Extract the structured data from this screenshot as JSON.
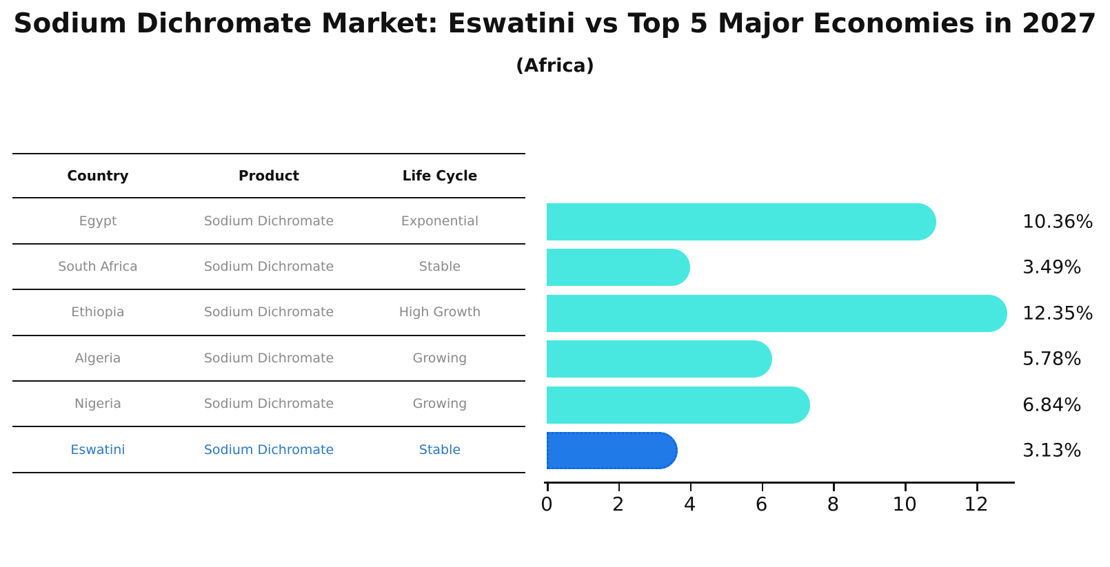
{
  "title": "Sodium Dichromate Market: Eswatini vs Top 5 Major Economies in 2027",
  "subtitle": "(Africa)",
  "colors": {
    "bar": "#48E8E0",
    "highlight_bar": "#207AE8",
    "highlight_bar_border": "#1165DD",
    "highlight_text": "#2878C2",
    "row_text": "#8A8A8A",
    "header_text": "#111111",
    "axis": "#111111"
  },
  "table": {
    "headers": [
      "Country",
      "Product",
      "Life Cycle"
    ],
    "rows": [
      [
        "Egypt",
        "Sodium Dichromate",
        "Exponential"
      ],
      [
        "South Africa",
        "Sodium Dichromate",
        "Stable"
      ],
      [
        "Ethiopia",
        "Sodium Dichromate",
        "High Growth"
      ],
      [
        "Algeria",
        "Sodium Dichromate",
        "Growing"
      ],
      [
        "Nigeria",
        "Sodium Dichromate",
        "Growing"
      ],
      [
        "Eswatini",
        "Sodium Dichromate",
        "Stable"
      ]
    ],
    "highlight_row_index": 5
  },
  "chart_data": {
    "type": "bar",
    "orientation": "horizontal",
    "title": "Sodium Dichromate Market: Eswatini vs Top 5 Major Economies in 2027",
    "subtitle": "(Africa)",
    "categories": [
      "Egypt",
      "South Africa",
      "Ethiopia",
      "Algeria",
      "Nigeria",
      "Eswatini"
    ],
    "values": [
      10.36,
      3.49,
      12.35,
      5.78,
      6.84,
      3.13
    ],
    "value_labels": [
      "10.36%",
      "3.49%",
      "12.35%",
      "5.78%",
      "6.84%",
      "3.13%"
    ],
    "xlabel": "",
    "ylabel": "",
    "xlim": [
      0,
      13
    ],
    "xticks": [
      0,
      2,
      4,
      6,
      8,
      10,
      12
    ],
    "grid": false,
    "legend": false,
    "highlight": {
      "index": 5,
      "category": "Eswatini"
    }
  }
}
